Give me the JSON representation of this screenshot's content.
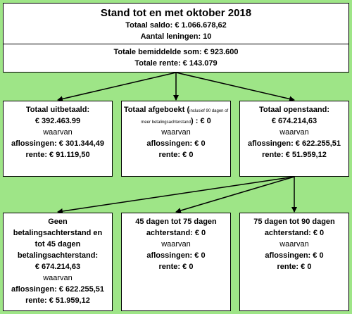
{
  "header": {
    "title": "Stand tot en met oktober 2018",
    "saldo": "Totaal saldo: € 1.066.678,62",
    "leningen": "Aantal leningen: 10",
    "bemiddelde": "Totale bemiddelde som: € 923.600",
    "rente": "Totale rente: € 143.079"
  },
  "uitbetaald": {
    "title": "Totaal uitbetaald:",
    "amount": "€ 392.463.99",
    "waarvan": "waarvan",
    "aflossingen": "aflossingen: € 301.344,49",
    "rente": "rente: € 91.119,50"
  },
  "afgeboekt": {
    "title": "Totaal afgeboekt",
    "note_open": "(",
    "note": "inclusief 90 dagen of meer betalingsachterstand",
    "note_close": ")",
    "amount": ": € 0",
    "waarvan": "waarvan",
    "aflossingen": "aflossingen: € 0",
    "rente": "rente: € 0"
  },
  "openstaand": {
    "title": "Totaal openstaand:",
    "amount": "€ 674.214,63",
    "waarvan": "waarvan",
    "aflossingen": "aflossingen: € 622.255,51",
    "rente": "rente: € 51.959,12"
  },
  "geen_achterstand": {
    "line1": "Geen",
    "line2": "betalingsachterstand en",
    "line3": "tot 45 dagen",
    "line4": "betalingsachterstand:",
    "amount": "€ 674.214,63",
    "waarvan": "waarvan",
    "aflossingen": "aflossingen: € 622.255,51",
    "rente": "rente: € 51.959,12"
  },
  "achterstand_45_75": {
    "line1": "45 dagen tot 75 dagen",
    "line2": "achterstand: € 0",
    "waarvan": "waarvan",
    "aflossingen": "aflossingen: € 0",
    "rente": "rente: € 0"
  },
  "achterstand_75_90": {
    "line1": "75 dagen tot 90 dagen",
    "line2": "achterstand: € 0",
    "waarvan": "waarvan",
    "aflossingen": "aflossingen: € 0",
    "rente": "rente: € 0"
  },
  "colors": {
    "background": "#9ee587",
    "box": "#ffffff",
    "line": "#000000"
  }
}
